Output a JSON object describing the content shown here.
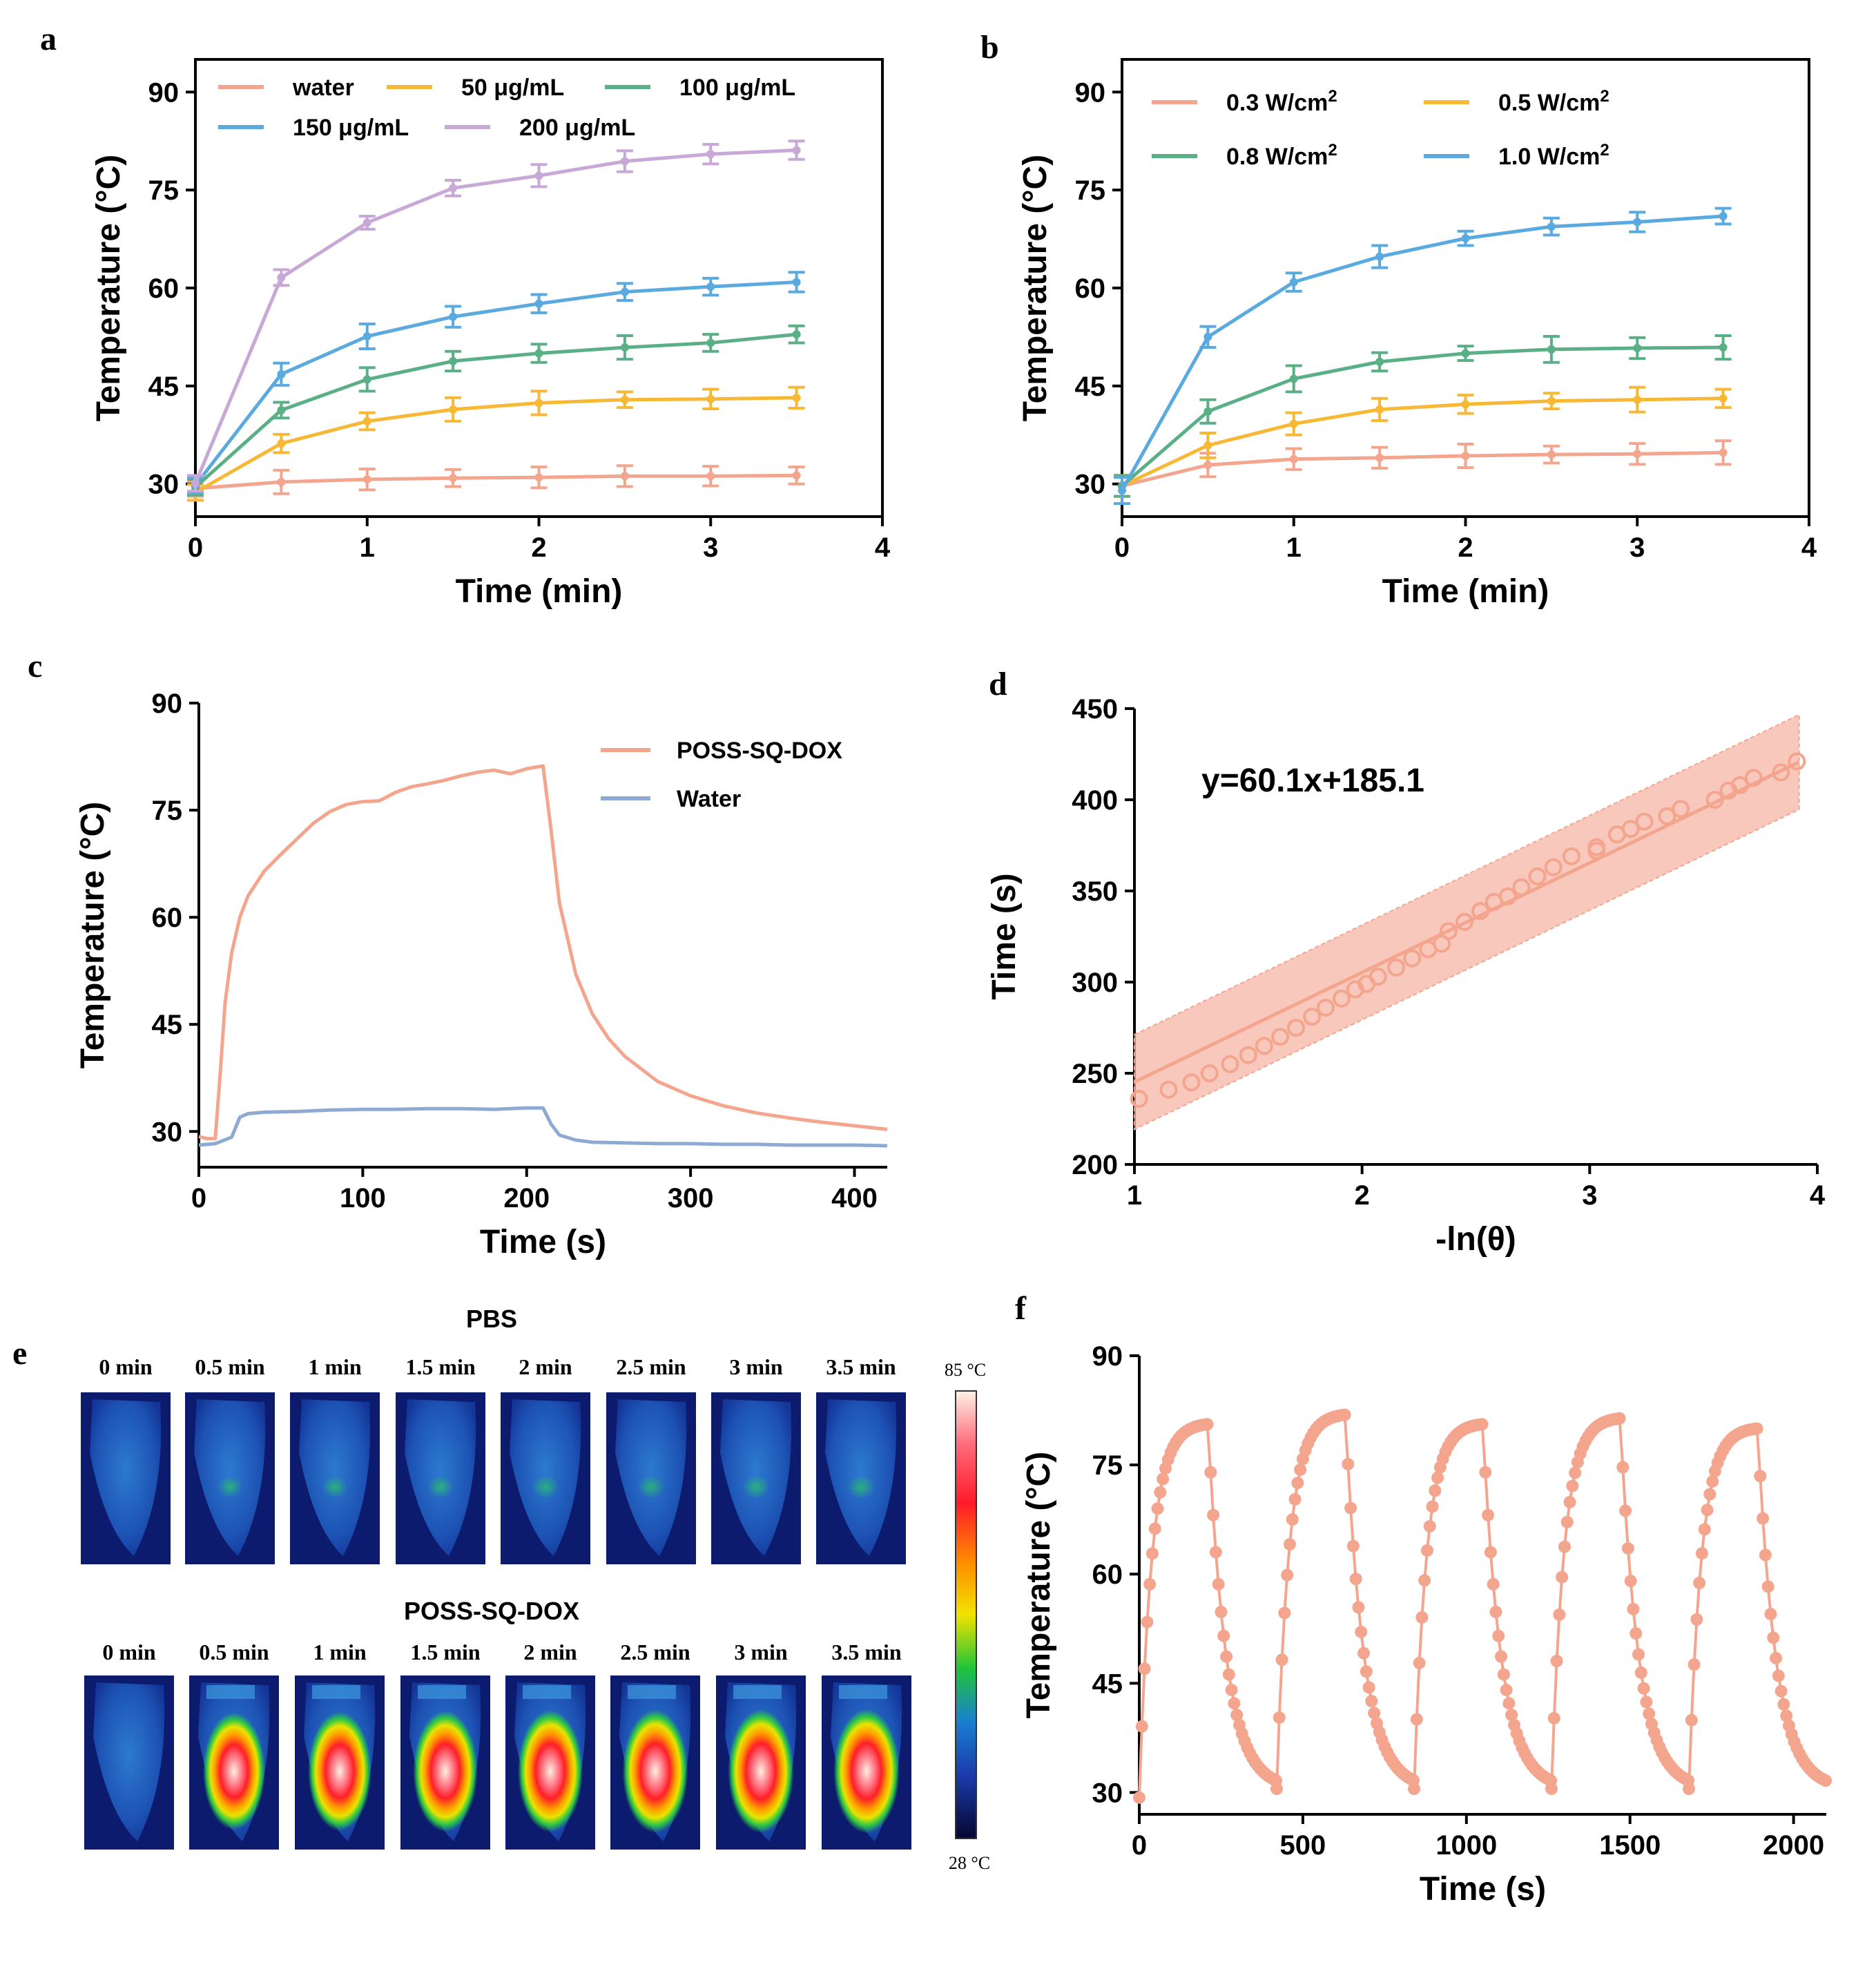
{
  "panel_labels": [
    "a",
    "b",
    "c",
    "d",
    "e",
    "f"
  ],
  "colors": {
    "water": "#F4A58E",
    "c50": "#F7B836",
    "c100": "#5BAF87",
    "c150": "#5AAAE0",
    "c200": "#C8A8D6",
    "water_c": "#8EAAD2",
    "band": "#F7B6A6"
  },
  "chart_data": [
    {
      "id": "a",
      "type": "line",
      "xlabel": "Time (min)",
      "ylabel": "Temperature (°C)",
      "xlim": [
        0,
        4
      ],
      "ylim": [
        25,
        95
      ],
      "xticks": [
        "0",
        "1",
        "2",
        "3",
        "4"
      ],
      "yticks": [
        "30",
        "45",
        "60",
        "75",
        "90"
      ],
      "x": [
        0,
        0.5,
        1,
        1.5,
        2,
        2.5,
        3,
        3.5
      ],
      "series": [
        {
          "name": "water",
          "color": "#F4A58E",
          "values": [
            29.3,
            30.3,
            30.7,
            30.9,
            31.0,
            31.2,
            31.2,
            31.3
          ],
          "err": [
            1.2,
            1.8,
            1.6,
            1.3,
            1.6,
            1.6,
            1.5,
            1.3
          ]
        },
        {
          "name": "50 μg/mL",
          "color": "#F7B836",
          "values": [
            28.7,
            36.2,
            39.6,
            41.4,
            42.4,
            42.9,
            43.0,
            43.2
          ],
          "err": [
            1.2,
            1.4,
            1.3,
            1.8,
            1.8,
            1.2,
            1.5,
            1.6
          ]
        },
        {
          "name": "100 μg/mL",
          "color": "#5BAF87",
          "values": [
            29.5,
            41.3,
            46.0,
            48.8,
            50.0,
            50.9,
            51.6,
            52.9
          ],
          "err": [
            1.2,
            1.2,
            1.8,
            1.5,
            1.4,
            1.8,
            1.3,
            1.3
          ]
        },
        {
          "name": "150 μg/mL",
          "color": "#5AAAE0",
          "values": [
            29.8,
            46.8,
            52.6,
            55.6,
            57.6,
            59.4,
            60.2,
            60.9
          ],
          "err": [
            1.2,
            1.7,
            1.9,
            1.6,
            1.4,
            1.3,
            1.3,
            1.5
          ]
        },
        {
          "name": "200 μg/mL",
          "color": "#C8A8D6",
          "values": [
            30.1,
            61.6,
            70.0,
            75.3,
            77.2,
            79.4,
            80.5,
            81.1
          ],
          "err": [
            1.2,
            1.2,
            1.0,
            1.2,
            1.7,
            1.6,
            1.5,
            1.4
          ]
        }
      ]
    },
    {
      "id": "b",
      "type": "line",
      "xlabel": "Time (min)",
      "ylabel": "Temperature (°C)",
      "xlim": [
        0,
        4
      ],
      "ylim": [
        25,
        95
      ],
      "xticks": [
        "0",
        "1",
        "2",
        "3",
        "4"
      ],
      "yticks": [
        "30",
        "45",
        "60",
        "75",
        "90"
      ],
      "x": [
        0,
        0.5,
        1,
        1.5,
        2,
        2.5,
        3,
        3.5
      ],
      "series": [
        {
          "name": "0.3 W/cm",
          "sup": "2",
          "color": "#F4A58E",
          "values": [
            29.7,
            32.9,
            33.8,
            34.0,
            34.3,
            34.5,
            34.6,
            34.8
          ],
          "err": [
            1.6,
            1.8,
            1.6,
            1.6,
            1.8,
            1.3,
            1.6,
            1.8
          ]
        },
        {
          "name": "0.5 W/cm",
          "sup": "2",
          "color": "#F7B836",
          "values": [
            29.7,
            35.9,
            39.2,
            41.4,
            42.2,
            42.7,
            42.9,
            43.1
          ],
          "err": [
            1.6,
            1.9,
            1.7,
            1.7,
            1.4,
            1.2,
            1.9,
            1.4
          ]
        },
        {
          "name": "0.8 W/cm",
          "sup": "2",
          "color": "#5BAF87",
          "values": [
            29.7,
            41.1,
            46.1,
            48.7,
            50.0,
            50.6,
            50.8,
            50.9
          ],
          "err": [
            1.6,
            1.8,
            2.0,
            1.4,
            1.1,
            2.0,
            1.6,
            1.8
          ]
        },
        {
          "name": "1.0 W/cm",
          "sup": "2",
          "color": "#5AAAE0",
          "values": [
            29.0,
            52.5,
            60.9,
            64.8,
            67.6,
            69.4,
            70.1,
            71.0
          ],
          "err": [
            2.0,
            1.6,
            1.4,
            1.7,
            1.1,
            1.3,
            1.5,
            1.2
          ]
        }
      ]
    },
    {
      "id": "c",
      "type": "line",
      "xlabel": "Time (s)",
      "ylabel": "Temperature (°C)",
      "xlim": [
        0,
        420
      ],
      "ylim": [
        25,
        90
      ],
      "xticks": [
        "0",
        "100",
        "200",
        "300",
        "400"
      ],
      "yticks": [
        "30",
        "45",
        "60",
        "75",
        "90"
      ],
      "series": [
        {
          "name": "POSS-SQ-DOX",
          "color": "#F4A58E",
          "x": [
            0,
            5,
            10,
            13,
            16,
            20,
            25,
            30,
            40,
            50,
            60,
            70,
            80,
            90,
            100,
            110,
            120,
            130,
            140,
            150,
            160,
            170,
            180,
            190,
            200,
            210,
            215,
            220,
            230,
            240,
            250,
            260,
            280,
            300,
            320,
            340,
            360,
            380,
            400,
            420
          ],
          "values": [
            29.3,
            29.0,
            29.0,
            38.0,
            48.0,
            55.0,
            60.0,
            63.0,
            66.5,
            68.8,
            71.0,
            73.2,
            74.8,
            75.8,
            76.2,
            76.3,
            77.5,
            78.3,
            78.7,
            79.2,
            79.8,
            80.3,
            80.6,
            80.1,
            80.8,
            81.2,
            72.0,
            62.0,
            52.0,
            46.5,
            43.0,
            40.5,
            37.0,
            35.0,
            33.6,
            32.6,
            31.9,
            31.3,
            30.8,
            30.3
          ]
        },
        {
          "name": "Water",
          "color": "#8EAAD2",
          "x": [
            0,
            10,
            20,
            25,
            30,
            40,
            60,
            80,
            100,
            120,
            140,
            160,
            180,
            200,
            210,
            215,
            220,
            230,
            240,
            260,
            280,
            300,
            320,
            340,
            360,
            380,
            400,
            420
          ],
          "values": [
            28.1,
            28.3,
            29.2,
            32.0,
            32.5,
            32.7,
            32.8,
            33.0,
            33.1,
            33.1,
            33.2,
            33.2,
            33.1,
            33.3,
            33.3,
            31.0,
            29.5,
            28.8,
            28.5,
            28.4,
            28.3,
            28.3,
            28.2,
            28.2,
            28.1,
            28.1,
            28.1,
            28.0
          ]
        }
      ]
    },
    {
      "id": "d",
      "type": "scatter",
      "xlabel": "-ln(θ)",
      "ylabel": "Time (s)",
      "xlim": [
        1,
        4
      ],
      "ylim": [
        200,
        450
      ],
      "xticks": [
        "1",
        "2",
        "3",
        "4"
      ],
      "yticks": [
        "200",
        "250",
        "300",
        "350",
        "400",
        "450"
      ],
      "annotation": "y=60.1x+185.1",
      "fit": {
        "slope": 60.1,
        "intercept": 185.1,
        "band": 26
      },
      "points": {
        "x": [
          1.02,
          1.15,
          1.25,
          1.33,
          1.42,
          1.5,
          1.57,
          1.64,
          1.71,
          1.78,
          1.84,
          1.91,
          1.97,
          2.02,
          2.07,
          2.15,
          2.22,
          2.29,
          2.35,
          2.38,
          2.45,
          2.52,
          2.58,
          2.64,
          2.7,
          2.77,
          2.84,
          2.92,
          3.03,
          3.03,
          3.12,
          3.18,
          3.24,
          3.34,
          3.4,
          3.55,
          3.61,
          3.66,
          3.72,
          3.84,
          3.91
        ],
        "y": [
          236,
          241,
          245,
          250,
          255,
          260,
          265,
          270,
          275,
          281,
          286,
          291,
          296,
          299,
          303,
          308,
          313,
          318,
          321,
          328,
          333,
          339,
          344,
          347,
          352,
          358,
          363,
          369,
          374,
          372,
          381,
          384,
          388,
          391,
          395,
          400,
          405,
          408,
          412,
          415,
          421
        ]
      }
    },
    {
      "id": "f",
      "type": "line",
      "xlabel": "Time (s)",
      "ylabel": "Temperature (°C)",
      "xlim": [
        0,
        2100
      ],
      "ylim": [
        27,
        90
      ],
      "xticks": [
        "0",
        "500",
        "1000",
        "1500",
        "2000"
      ],
      "yticks": [
        "30",
        "45",
        "60",
        "75",
        "90"
      ],
      "cycles": {
        "count": 5,
        "period": 420,
        "heat_duration": 210,
        "start": 29.3,
        "peaks": [
          80.8,
          82.1,
          80.8,
          81.6,
          80.2
        ],
        "end": 30.5
      },
      "color": "#F4A58E"
    }
  ],
  "thermal": {
    "pbs_title": "PBS",
    "dox_title": "POSS-SQ-DOX",
    "times": [
      "0 min",
      "0.5 min",
      "1 min",
      "1.5 min",
      "2 min",
      "2.5 min",
      "3 min",
      "3.5 min"
    ],
    "pbs_intensity": [
      0.0,
      0.1,
      0.12,
      0.14,
      0.15,
      0.16,
      0.17,
      0.18
    ],
    "dox_intensity": [
      0.0,
      0.7,
      0.78,
      0.86,
      0.9,
      0.94,
      0.96,
      0.98
    ],
    "colorbar_max": "85 °C",
    "colorbar_min": "28 °C"
  }
}
